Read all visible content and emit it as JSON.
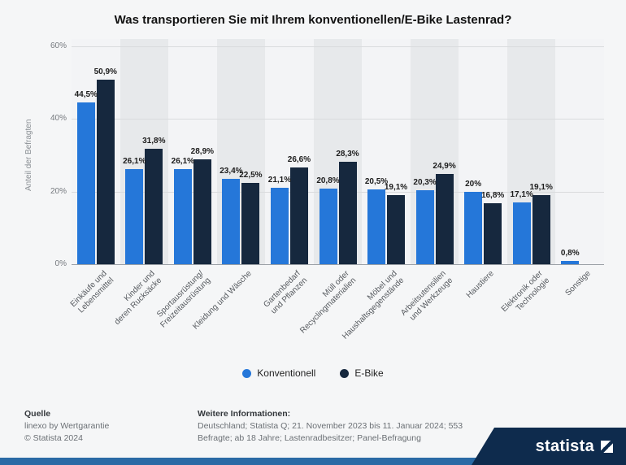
{
  "chart_data": {
    "type": "bar",
    "title": "Was transportieren Sie mit Ihrem konventionellen/E-Bike Lastenrad?",
    "ylabel": "Anteil der Befragten",
    "xlabel": "",
    "ylim": [
      0,
      60
    ],
    "yticks": [
      0,
      20,
      40,
      60
    ],
    "grid": true,
    "legend_position": "bottom",
    "categories": [
      "Einkäufe und\nLebensmittel",
      "Kinder und\nderen Rucksäcke",
      "Sportausrüstung/\nFreizeitausrüstung",
      "Kleidung und Wäsche",
      "Gartenbedarf\nund Pflanzen",
      "Müll oder\nRecyclingmaterialien",
      "Möbel und\nHaushaltsgegenstände",
      "Arbeitsutensilien\nund Werkzeuge",
      "Haustiere",
      "Elektronik oder\nTechnologie",
      "Sonstige"
    ],
    "series": [
      {
        "name": "Konventionell",
        "color": "#2577d9",
        "values": [
          44.5,
          26.1,
          26.1,
          23.4,
          21.1,
          20.8,
          20.5,
          20.3,
          20,
          17.1,
          0.8
        ],
        "value_labels": [
          "44,5%",
          "26,1%",
          "26,1%",
          "23,4%",
          "21,1%",
          "20,8%",
          "20,5%",
          "20,3%",
          "20%",
          "17,1%",
          "0,8%"
        ]
      },
      {
        "name": "E-Bike",
        "color": "#16283e",
        "values": [
          50.9,
          31.8,
          28.9,
          22.5,
          26.6,
          28.3,
          19.1,
          24.9,
          16.8,
          19.1,
          null
        ],
        "value_labels": [
          "50,9%",
          "31,8%",
          "28,9%",
          "22,5%",
          "26,6%",
          "28,3%",
          "19,1%",
          "24,9%",
          "16,8%",
          "19,1%",
          ""
        ]
      }
    ]
  },
  "footer": {
    "source_heading": "Quelle",
    "source": "linexo by Wertgarantie",
    "copyright": "© Statista 2024",
    "info_heading": "Weitere Informationen:",
    "info_line1": "Deutschland; Statista Q; 21. November 2023 bis 11. Januar 2024; 553",
    "info_line2": "Befragte; ab 18 Jahre; Lastenradbesitzer; Panel-Befragung",
    "brand": "statista"
  }
}
